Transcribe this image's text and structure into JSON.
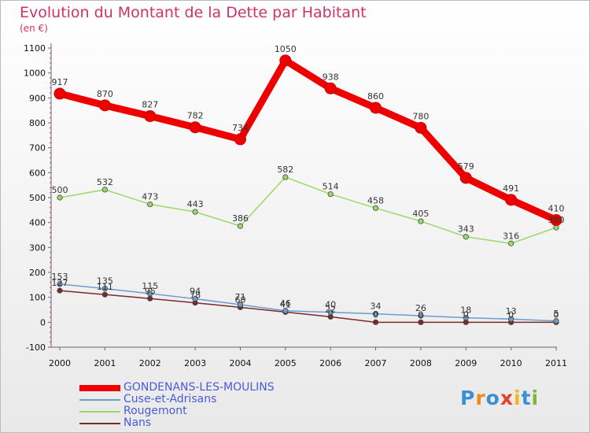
{
  "title": "Evolution du Montant de la Dette par Habitant",
  "subtitle": "(en €)",
  "logo": {
    "text": "Proxiti",
    "colors": [
      "#3a8fd8",
      "#f08a1c",
      "#3a8fd8",
      "#e8402a",
      "#f0b81c",
      "#3a8fd8",
      "#7ab83a"
    ]
  },
  "chart_data": {
    "type": "line",
    "title": "Evolution du Montant de la Dette par Habitant",
    "subtitle": "(en €)",
    "x": [
      "2000",
      "2001",
      "2002",
      "2003",
      "2004",
      "2005",
      "2006",
      "2007",
      "2008",
      "2009",
      "2010",
      "2011"
    ],
    "y_ticks": [
      -100,
      0,
      100,
      200,
      300,
      400,
      500,
      600,
      700,
      800,
      900,
      1000,
      1100
    ],
    "ylim": [
      -100,
      1100
    ],
    "grid": false,
    "legend_position": "bottom-left",
    "series": [
      {
        "name": "GONDENANS-LES-MOULINS",
        "color": "#ee0000",
        "width": 9,
        "marker": 7,
        "values": [
          917,
          870,
          827,
          782,
          734,
          1050,
          938,
          860,
          780,
          579,
          491,
          410
        ]
      },
      {
        "name": "Cuse-et-Adrisans",
        "color": "#6a9ccc",
        "width": 1.5,
        "marker": 3.2,
        "values": [
          153,
          135,
          115,
          94,
          71,
          46,
          40,
          34,
          26,
          18,
          13,
          5
        ]
      },
      {
        "name": "Rougemont",
        "color": "#9bd86a",
        "width": 1.5,
        "marker": 3.2,
        "values": [
          500,
          532,
          473,
          443,
          386,
          582,
          514,
          458,
          405,
          343,
          316,
          380
        ]
      },
      {
        "name": "Nans",
        "color": "#7a2a2a",
        "width": 1.5,
        "marker": 3.2,
        "values": [
          127,
          111,
          95,
          78,
          60,
          41,
          22,
          0,
          0,
          0,
          0,
          0
        ]
      }
    ],
    "data_labels": [
      [
        "917",
        "870",
        "827",
        "782",
        "734",
        "1050",
        "938",
        "860",
        "780",
        "579",
        "491",
        "410"
      ],
      [
        "153",
        "135",
        "115",
        "94",
        "71",
        "46",
        "40",
        "34",
        "26",
        "18",
        "13",
        "5"
      ],
      [
        "500",
        "532",
        "473",
        "443",
        "386",
        "582",
        "514",
        "458",
        "405",
        "343",
        "316",
        "380"
      ],
      [
        "127",
        "111",
        "95",
        "78",
        "60",
        "41",
        "22",
        "0",
        "0",
        "0",
        "0",
        "0"
      ]
    ]
  }
}
